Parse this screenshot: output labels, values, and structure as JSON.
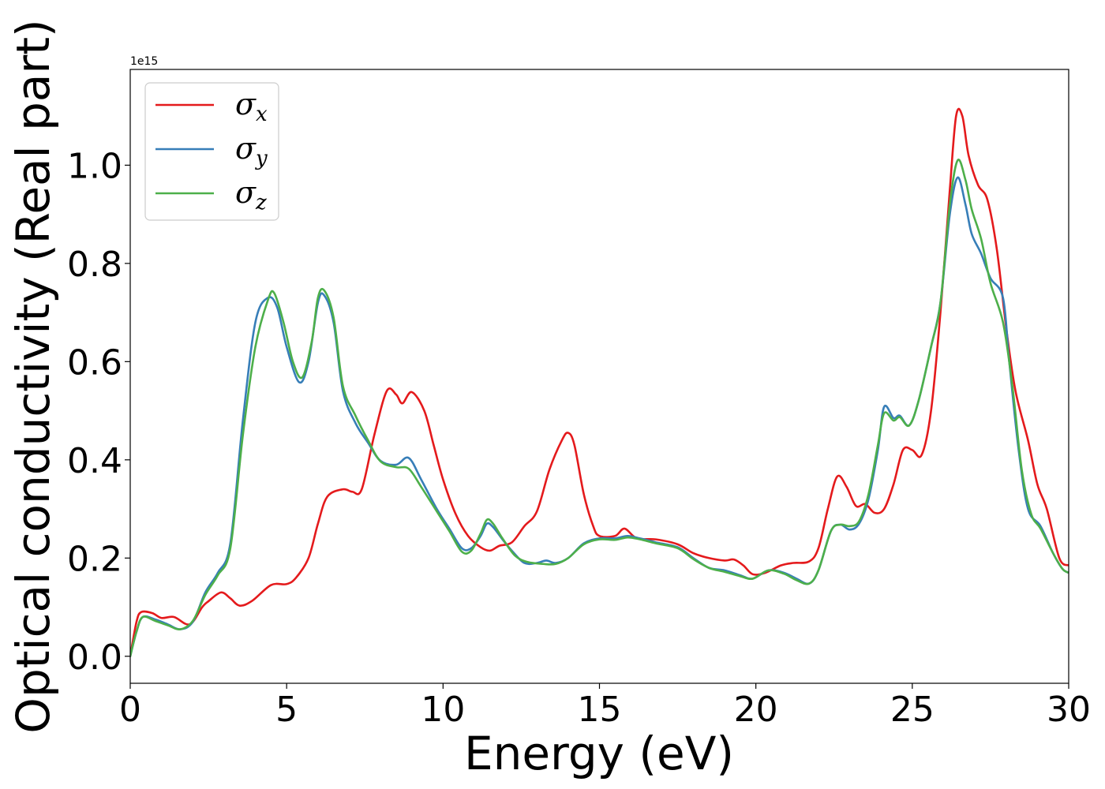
{
  "chart_data": {
    "type": "line",
    "xlabel": "Energy (eV)",
    "ylabel": "Optical conductivity (Real part)",
    "offset_text": "1e15",
    "xlim": [
      0,
      30
    ],
    "ylim": [
      -0.055,
      1.195
    ],
    "x_ticks": [
      0,
      5,
      10,
      15,
      20,
      25,
      30
    ],
    "x_tick_labels": [
      "0",
      "5",
      "10",
      "15",
      "20",
      "25",
      "30"
    ],
    "y_ticks": [
      0.0,
      0.2,
      0.4,
      0.6,
      0.8,
      1.0
    ],
    "y_tick_labels": [
      "0.0",
      "0.2",
      "0.4",
      "0.6",
      "0.8",
      "1.0"
    ],
    "grid": false,
    "legend_position": "top-left",
    "series": [
      {
        "name": "x",
        "label_prefix": "σ",
        "color": "#e41a1c",
        "points": [
          [
            0,
            0
          ],
          [
            0.2,
            0.07
          ],
          [
            0.35,
            0.09
          ],
          [
            0.7,
            0.088
          ],
          [
            1.0,
            0.078
          ],
          [
            1.4,
            0.08
          ],
          [
            1.9,
            0.065
          ],
          [
            2.3,
            0.1
          ],
          [
            2.5,
            0.112
          ],
          [
            2.9,
            0.13
          ],
          [
            3.2,
            0.118
          ],
          [
            3.5,
            0.103
          ],
          [
            3.9,
            0.113
          ],
          [
            4.5,
            0.145
          ],
          [
            5.0,
            0.147
          ],
          [
            5.3,
            0.16
          ],
          [
            5.7,
            0.2
          ],
          [
            6.0,
            0.27
          ],
          [
            6.3,
            0.325
          ],
          [
            6.8,
            0.34
          ],
          [
            7.1,
            0.335
          ],
          [
            7.4,
            0.34
          ],
          [
            7.8,
            0.45
          ],
          [
            8.2,
            0.54
          ],
          [
            8.5,
            0.533
          ],
          [
            8.7,
            0.515
          ],
          [
            9.0,
            0.538
          ],
          [
            9.4,
            0.5
          ],
          [
            9.7,
            0.43
          ],
          [
            10.0,
            0.36
          ],
          [
            10.4,
            0.29
          ],
          [
            10.8,
            0.245
          ],
          [
            11.2,
            0.222
          ],
          [
            11.5,
            0.215
          ],
          [
            11.8,
            0.225
          ],
          [
            12.2,
            0.232
          ],
          [
            12.6,
            0.265
          ],
          [
            13.0,
            0.295
          ],
          [
            13.4,
            0.38
          ],
          [
            13.8,
            0.44
          ],
          [
            14.0,
            0.455
          ],
          [
            14.2,
            0.43
          ],
          [
            14.5,
            0.33
          ],
          [
            14.8,
            0.265
          ],
          [
            15.0,
            0.245
          ],
          [
            15.5,
            0.245
          ],
          [
            15.8,
            0.26
          ],
          [
            16.2,
            0.24
          ],
          [
            16.8,
            0.238
          ],
          [
            17.5,
            0.228
          ],
          [
            18.0,
            0.21
          ],
          [
            18.5,
            0.2
          ],
          [
            19.0,
            0.195
          ],
          [
            19.3,
            0.197
          ],
          [
            19.6,
            0.185
          ],
          [
            19.9,
            0.167
          ],
          [
            20.3,
            0.17
          ],
          [
            20.8,
            0.185
          ],
          [
            21.2,
            0.19
          ],
          [
            21.7,
            0.193
          ],
          [
            22.0,
            0.22
          ],
          [
            22.3,
            0.3
          ],
          [
            22.6,
            0.366
          ],
          [
            22.9,
            0.345
          ],
          [
            23.2,
            0.306
          ],
          [
            23.5,
            0.31
          ],
          [
            23.8,
            0.292
          ],
          [
            24.1,
            0.3
          ],
          [
            24.4,
            0.35
          ],
          [
            24.7,
            0.42
          ],
          [
            25.0,
            0.42
          ],
          [
            25.3,
            0.41
          ],
          [
            25.6,
            0.5
          ],
          [
            25.9,
            0.7
          ],
          [
            26.2,
            0.95
          ],
          [
            26.4,
            1.1
          ],
          [
            26.6,
            1.1
          ],
          [
            26.8,
            1.02
          ],
          [
            27.1,
            0.96
          ],
          [
            27.4,
            0.93
          ],
          [
            27.7,
            0.83
          ],
          [
            28.0,
            0.67
          ],
          [
            28.3,
            0.54
          ],
          [
            28.7,
            0.44
          ],
          [
            29.0,
            0.35
          ],
          [
            29.3,
            0.3
          ],
          [
            29.7,
            0.2
          ],
          [
            30.0,
            0.185
          ]
        ]
      },
      {
        "name": "y",
        "label_prefix": "σ",
        "color": "#377eb8",
        "points": [
          [
            0,
            0
          ],
          [
            0.2,
            0.05
          ],
          [
            0.4,
            0.08
          ],
          [
            0.8,
            0.075
          ],
          [
            1.2,
            0.065
          ],
          [
            1.6,
            0.055
          ],
          [
            2.0,
            0.07
          ],
          [
            2.4,
            0.13
          ],
          [
            2.8,
            0.17
          ],
          [
            3.2,
            0.23
          ],
          [
            3.6,
            0.48
          ],
          [
            4.0,
            0.68
          ],
          [
            4.4,
            0.73
          ],
          [
            4.7,
            0.71
          ],
          [
            5.0,
            0.63
          ],
          [
            5.4,
            0.558
          ],
          [
            5.7,
            0.6
          ],
          [
            6.0,
            0.72
          ],
          [
            6.2,
            0.735
          ],
          [
            6.5,
            0.68
          ],
          [
            6.8,
            0.54
          ],
          [
            7.2,
            0.475
          ],
          [
            7.6,
            0.435
          ],
          [
            8.0,
            0.398
          ],
          [
            8.5,
            0.39
          ],
          [
            8.9,
            0.404
          ],
          [
            9.3,
            0.36
          ],
          [
            9.8,
            0.3
          ],
          [
            10.2,
            0.26
          ],
          [
            10.6,
            0.22
          ],
          [
            10.9,
            0.22
          ],
          [
            11.2,
            0.245
          ],
          [
            11.4,
            0.27
          ],
          [
            11.6,
            0.263
          ],
          [
            11.9,
            0.238
          ],
          [
            12.2,
            0.215
          ],
          [
            12.6,
            0.19
          ],
          [
            13.0,
            0.19
          ],
          [
            13.3,
            0.195
          ],
          [
            13.6,
            0.19
          ],
          [
            14.0,
            0.2
          ],
          [
            14.5,
            0.23
          ],
          [
            15.0,
            0.24
          ],
          [
            15.5,
            0.24
          ],
          [
            15.9,
            0.245
          ],
          [
            16.3,
            0.24
          ],
          [
            16.8,
            0.232
          ],
          [
            17.5,
            0.222
          ],
          [
            18.0,
            0.2
          ],
          [
            18.5,
            0.18
          ],
          [
            19.0,
            0.175
          ],
          [
            19.5,
            0.165
          ],
          [
            19.9,
            0.158
          ],
          [
            20.4,
            0.175
          ],
          [
            20.9,
            0.17
          ],
          [
            21.3,
            0.158
          ],
          [
            21.7,
            0.148
          ],
          [
            22.0,
            0.175
          ],
          [
            22.4,
            0.255
          ],
          [
            22.7,
            0.268
          ],
          [
            23.0,
            0.258
          ],
          [
            23.3,
            0.27
          ],
          [
            23.6,
            0.32
          ],
          [
            23.9,
            0.42
          ],
          [
            24.1,
            0.508
          ],
          [
            24.4,
            0.485
          ],
          [
            24.6,
            0.49
          ],
          [
            24.9,
            0.47
          ],
          [
            25.2,
            0.52
          ],
          [
            25.6,
            0.63
          ],
          [
            25.9,
            0.72
          ],
          [
            26.2,
            0.9
          ],
          [
            26.45,
            0.975
          ],
          [
            26.7,
            0.92
          ],
          [
            26.9,
            0.86
          ],
          [
            27.2,
            0.82
          ],
          [
            27.5,
            0.77
          ],
          [
            27.9,
            0.73
          ],
          [
            28.1,
            0.6
          ],
          [
            28.4,
            0.42
          ],
          [
            28.7,
            0.3
          ],
          [
            29.1,
            0.265
          ],
          [
            29.5,
            0.21
          ],
          [
            29.8,
            0.178
          ],
          [
            30.0,
            0.17
          ]
        ]
      },
      {
        "name": "z",
        "label_prefix": "σ",
        "color": "#4daf4a",
        "points": [
          [
            0,
            0
          ],
          [
            0.2,
            0.05
          ],
          [
            0.4,
            0.08
          ],
          [
            0.8,
            0.072
          ],
          [
            1.2,
            0.063
          ],
          [
            1.6,
            0.055
          ],
          [
            2.0,
            0.072
          ],
          [
            2.4,
            0.125
          ],
          [
            2.8,
            0.165
          ],
          [
            3.2,
            0.22
          ],
          [
            3.6,
            0.45
          ],
          [
            4.0,
            0.63
          ],
          [
            4.4,
            0.725
          ],
          [
            4.6,
            0.74
          ],
          [
            4.9,
            0.68
          ],
          [
            5.2,
            0.6
          ],
          [
            5.5,
            0.568
          ],
          [
            5.8,
            0.64
          ],
          [
            6.0,
            0.73
          ],
          [
            6.2,
            0.745
          ],
          [
            6.5,
            0.69
          ],
          [
            6.8,
            0.55
          ],
          [
            7.2,
            0.49
          ],
          [
            7.6,
            0.44
          ],
          [
            8.0,
            0.397
          ],
          [
            8.5,
            0.385
          ],
          [
            8.9,
            0.382
          ],
          [
            9.3,
            0.345
          ],
          [
            9.8,
            0.295
          ],
          [
            10.2,
            0.255
          ],
          [
            10.6,
            0.213
          ],
          [
            10.9,
            0.215
          ],
          [
            11.2,
            0.25
          ],
          [
            11.4,
            0.278
          ],
          [
            11.6,
            0.27
          ],
          [
            11.9,
            0.24
          ],
          [
            12.3,
            0.205
          ],
          [
            12.7,
            0.192
          ],
          [
            13.2,
            0.188
          ],
          [
            13.6,
            0.188
          ],
          [
            14.0,
            0.2
          ],
          [
            14.5,
            0.228
          ],
          [
            15.0,
            0.238
          ],
          [
            15.5,
            0.237
          ],
          [
            15.9,
            0.242
          ],
          [
            16.3,
            0.238
          ],
          [
            16.8,
            0.23
          ],
          [
            17.5,
            0.22
          ],
          [
            18.0,
            0.198
          ],
          [
            18.5,
            0.18
          ],
          [
            19.0,
            0.172
          ],
          [
            19.5,
            0.163
          ],
          [
            19.9,
            0.158
          ],
          [
            20.4,
            0.175
          ],
          [
            20.9,
            0.168
          ],
          [
            21.3,
            0.155
          ],
          [
            21.7,
            0.148
          ],
          [
            22.0,
            0.175
          ],
          [
            22.4,
            0.255
          ],
          [
            22.7,
            0.268
          ],
          [
            23.0,
            0.265
          ],
          [
            23.3,
            0.275
          ],
          [
            23.6,
            0.33
          ],
          [
            23.9,
            0.43
          ],
          [
            24.1,
            0.495
          ],
          [
            24.4,
            0.48
          ],
          [
            24.6,
            0.487
          ],
          [
            24.9,
            0.47
          ],
          [
            25.2,
            0.52
          ],
          [
            25.6,
            0.63
          ],
          [
            25.9,
            0.72
          ],
          [
            26.2,
            0.92
          ],
          [
            26.45,
            1.01
          ],
          [
            26.7,
            0.97
          ],
          [
            26.9,
            0.91
          ],
          [
            27.2,
            0.85
          ],
          [
            27.5,
            0.76
          ],
          [
            27.9,
            0.68
          ],
          [
            28.2,
            0.55
          ],
          [
            28.5,
            0.38
          ],
          [
            28.8,
            0.29
          ],
          [
            29.1,
            0.26
          ],
          [
            29.5,
            0.21
          ],
          [
            29.8,
            0.178
          ],
          [
            30.0,
            0.17
          ]
        ]
      }
    ]
  }
}
